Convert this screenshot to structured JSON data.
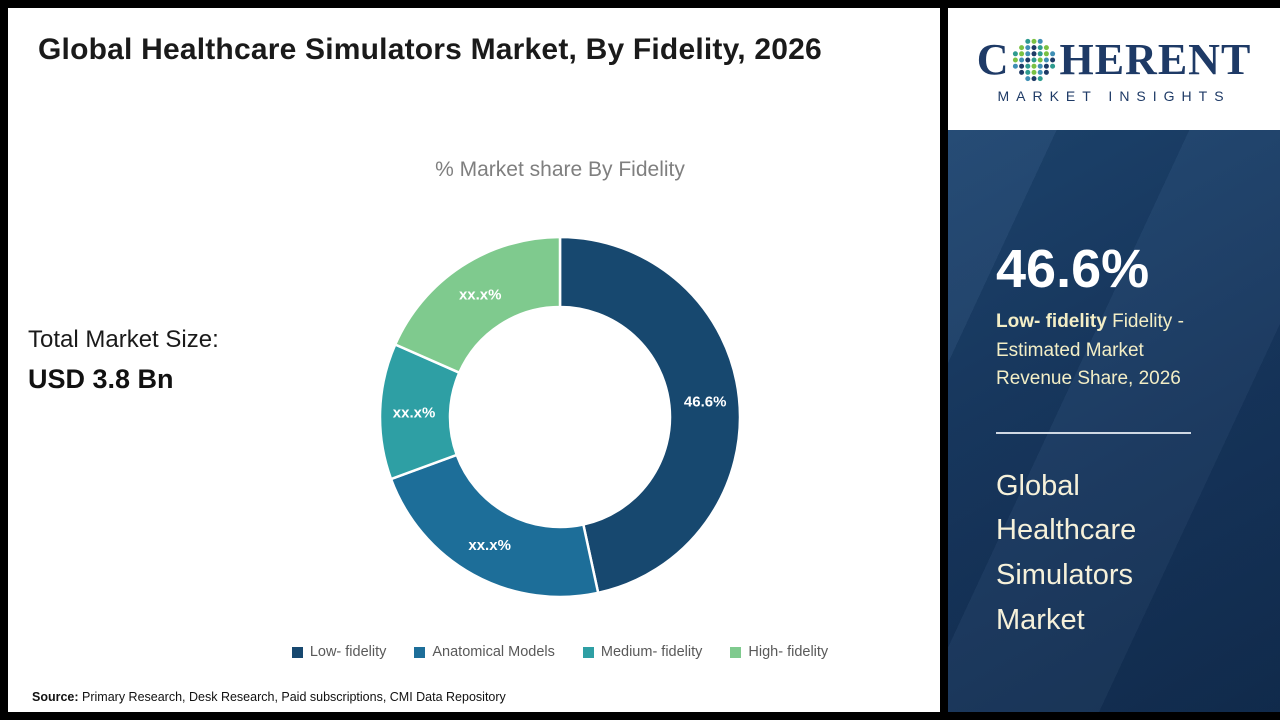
{
  "header": {
    "title": "Global Healthcare Simulators Market, By Fidelity, 2026"
  },
  "chart_data": {
    "type": "pie",
    "subtype": "donut",
    "title": "% Market share By Fidelity",
    "legend_position": "bottom",
    "values_masked_as": "xx.x%",
    "segments": [
      {
        "label": "Low- fidelity",
        "display": "46.6%",
        "value_pct": 46.6,
        "color": "#17486f"
      },
      {
        "label": "Anatomical Models",
        "display": "xx.x%",
        "value_pct": 22.8,
        "color": "#1d6e99"
      },
      {
        "label": "Medium- fidelity",
        "display": "xx.x%",
        "value_pct": 12.2,
        "color": "#2e9fa4"
      },
      {
        "label": "High- fidelity",
        "display": "xx.x%",
        "value_pct": 18.4,
        "color": "#7fca8e"
      }
    ]
  },
  "total": {
    "label": "Total Market Size:",
    "value": "USD 3.8 Bn"
  },
  "source": {
    "label": "Source:",
    "text": " Primary Research, Desk Research, Paid subscriptions, CMI Data Repository"
  },
  "sidebar": {
    "logo": {
      "text_pre": "C",
      "text_post": "HERENT",
      "tagline": "MARKET INSIGHTS",
      "text_color": "#1e3a66",
      "dot_colors": [
        "#1e3a66",
        "#2e9b8f",
        "#7ac143",
        "#3f8fb5"
      ]
    },
    "stat_value": "46.6%",
    "stat_desc_bold": "Low- fidelity",
    "stat_desc_rest": " Fidelity - Estimated Market Revenue Share, 2026",
    "market_title": "Global Healthcare Simulators Market"
  }
}
